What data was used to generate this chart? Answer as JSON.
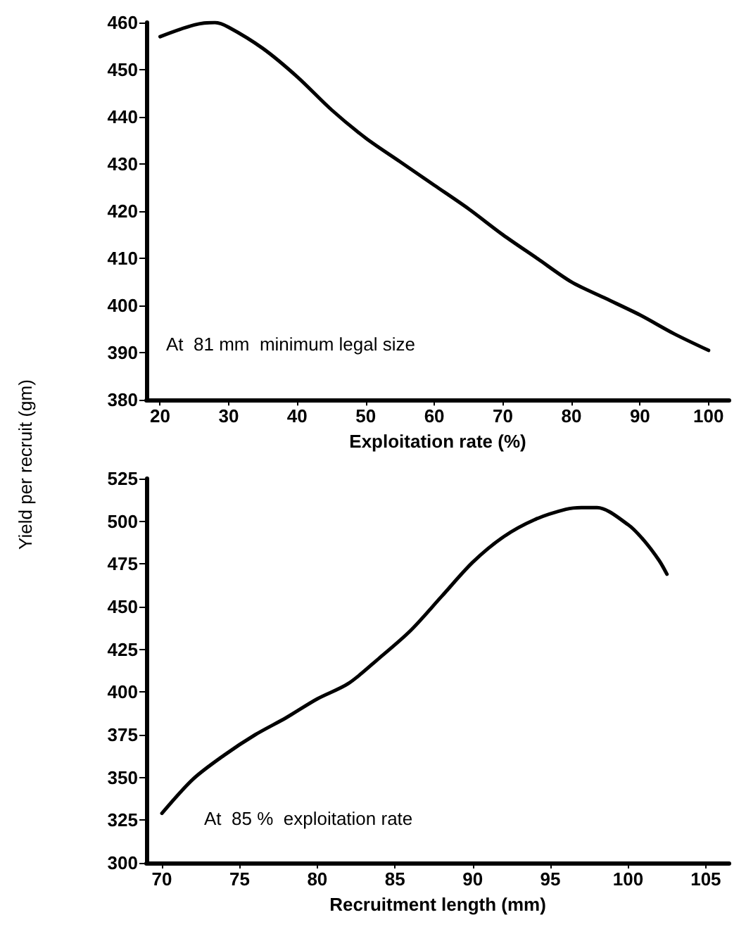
{
  "chart_data": [
    {
      "type": "line",
      "xlabel": "Exploitation rate (%)",
      "ylabel": "Yield per recruit (gm)",
      "annotations": [
        "At  81 mm  minimum legal size"
      ],
      "x": [
        20,
        25,
        28,
        30,
        35,
        40,
        45,
        50,
        55,
        60,
        65,
        70,
        75,
        80,
        85,
        90,
        95,
        100
      ],
      "series": [
        {
          "color": "#000000",
          "values": [
            457,
            459.5,
            460,
            459,
            454.5,
            448.5,
            441.5,
            435.5,
            430.5,
            425.5,
            420.5,
            415,
            410,
            405,
            401.5,
            398,
            394,
            390.5
          ]
        }
      ],
      "xlim": [
        18,
        103
      ],
      "xticks": [
        20,
        30,
        40,
        50,
        60,
        70,
        80,
        90,
        100
      ],
      "ylim": [
        380,
        460
      ],
      "yticks": [
        380,
        390,
        400,
        410,
        420,
        430,
        440,
        450,
        460
      ],
      "grid": false,
      "marker": "none",
      "line_style": "solid"
    },
    {
      "type": "line",
      "xlabel": "Recruitment length (mm)",
      "annotations": [
        "At  85 %  exploitation rate"
      ],
      "x": [
        70,
        72,
        74,
        76,
        78,
        80,
        82,
        84,
        86,
        88,
        90,
        92,
        94,
        96,
        97,
        98,
        100,
        101,
        102,
        102.5
      ],
      "series": [
        {
          "color": "#000000",
          "values": [
            329,
            349,
            363,
            375,
            385,
            396,
            405,
            420,
            436,
            456,
            476,
            491,
            501,
            507,
            508,
            508,
            498,
            489,
            477,
            469
          ]
        }
      ],
      "xlim": [
        69,
        106.5
      ],
      "xticks": [
        70,
        75,
        80,
        85,
        90,
        95,
        100,
        105
      ],
      "ylim": [
        300,
        525
      ],
      "yticks": [
        300,
        325,
        350,
        375,
        400,
        425,
        450,
        475,
        500,
        525
      ],
      "grid": false,
      "marker": "none",
      "line_style": "solid"
    }
  ]
}
